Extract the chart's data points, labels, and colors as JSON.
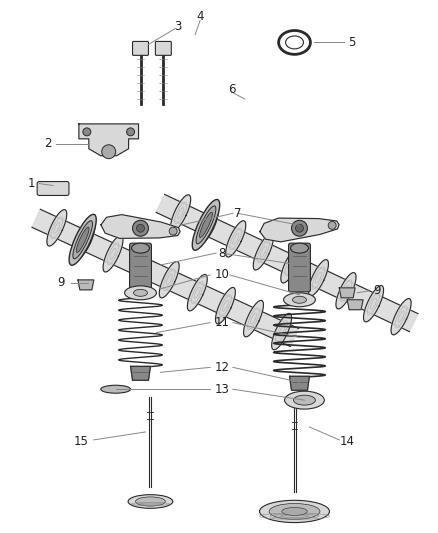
{
  "bg_color": "#ffffff",
  "fig_width": 4.38,
  "fig_height": 5.33,
  "dpi": 100,
  "line_color": "#2a2a2a",
  "gray_dark": "#555555",
  "gray_mid": "#888888",
  "gray_light": "#bbbbbb",
  "gray_fill": "#d8d8d8",
  "label_fontsize": 8.5,
  "label_color": "#222222",
  "leader_color": "#888888"
}
